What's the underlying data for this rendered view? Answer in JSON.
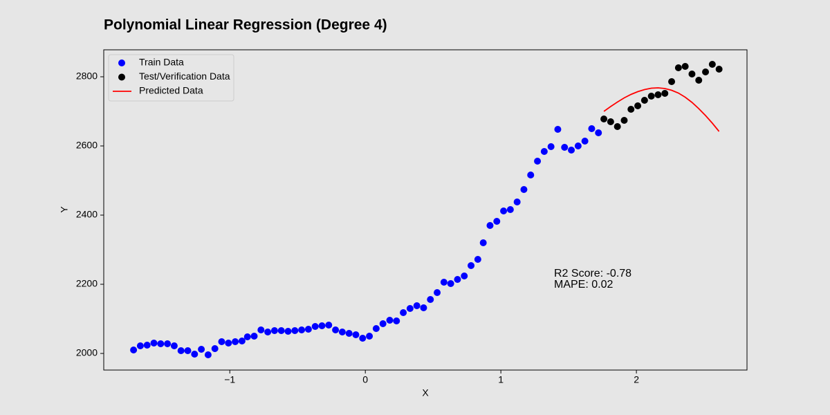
{
  "chart_data": {
    "type": "scatter",
    "title": "Polynomial Linear Regression (Degree 4)",
    "x_label": "X",
    "y_label": "Y",
    "xlim": [
      -1.93,
      2.816
    ],
    "ylim": [
      1952,
      2878
    ],
    "xticks": [
      {
        "value": -1,
        "label": "−1"
      },
      0,
      1,
      2
    ],
    "yticks": [
      2000,
      2200,
      2400,
      2600,
      2800
    ],
    "grid": false,
    "legend": "upper left",
    "annotations": [
      "R2 Score: -0.78",
      "MAPE: 0.02"
    ],
    "series": [
      {
        "name": "Train Data",
        "type": "scatter",
        "color": "#0000ff",
        "x": [
          -1.71,
          -1.66,
          -1.61,
          -1.56,
          -1.51,
          -1.46,
          -1.41,
          -1.36,
          -1.31,
          -1.26,
          -1.21,
          -1.16,
          -1.11,
          -1.06,
          -1.01,
          -0.96,
          -0.91,
          -0.87,
          -0.82,
          -0.77,
          -0.72,
          -0.67,
          -0.62,
          -0.57,
          -0.52,
          -0.47,
          -0.42,
          -0.37,
          -0.32,
          -0.27,
          -0.22,
          -0.17,
          -0.12,
          -0.07,
          -0.02,
          0.03,
          0.08,
          0.13,
          0.18,
          0.23,
          0.28,
          0.33,
          0.38,
          0.43,
          0.48,
          0.53,
          0.58,
          0.63,
          0.68,
          0.73,
          0.78,
          0.83,
          0.87,
          0.92,
          0.97,
          1.02,
          1.07,
          1.12,
          1.17,
          1.22,
          1.27,
          1.32,
          1.37,
          1.42,
          1.47,
          1.52,
          1.57,
          1.62,
          1.67,
          1.72
        ],
        "values": [
          2010,
          2022,
          2024,
          2030,
          2028,
          2028,
          2022,
          2008,
          2008,
          1998,
          2012,
          1996,
          2014,
          2034,
          2030,
          2034,
          2036,
          2048,
          2050,
          2068,
          2062,
          2066,
          2066,
          2064,
          2066,
          2068,
          2070,
          2078,
          2080,
          2082,
          2068,
          2062,
          2058,
          2054,
          2044,
          2050,
          2072,
          2086,
          2096,
          2094,
          2118,
          2130,
          2138,
          2132,
          2156,
          2176,
          2206,
          2202,
          2214,
          2224,
          2254,
          2272,
          2320,
          2370,
          2382,
          2412,
          2416,
          2438,
          2474,
          2516,
          2556,
          2584,
          2598,
          2648,
          2596,
          2588,
          2600,
          2614,
          2650,
          2638
        ]
      },
      {
        "name": "Test/Verification Data",
        "type": "scatter",
        "color": "#000000",
        "x": [
          1.76,
          1.81,
          1.86,
          1.91,
          1.96,
          2.01,
          2.06,
          2.11,
          2.16,
          2.21,
          2.26,
          2.31,
          2.36,
          2.41,
          2.46,
          2.51,
          2.56,
          2.61
        ],
        "values": [
          2678,
          2670,
          2656,
          2674,
          2706,
          2716,
          2732,
          2744,
          2748,
          2752,
          2786,
          2826,
          2830,
          2808,
          2790,
          2814,
          2836,
          2822
        ]
      },
      {
        "name": "Predicted Data",
        "type": "line",
        "color": "#ff0000",
        "x": [
          1.76,
          1.81,
          1.86,
          1.91,
          1.96,
          2.01,
          2.06,
          2.11,
          2.16,
          2.21,
          2.26,
          2.31,
          2.36,
          2.41,
          2.46,
          2.51,
          2.56,
          2.61
        ],
        "values": [
          2700,
          2714,
          2727,
          2739,
          2749,
          2757,
          2763,
          2767,
          2768,
          2766,
          2761,
          2753,
          2741,
          2726,
          2708,
          2688,
          2666,
          2642
        ]
      }
    ]
  }
}
